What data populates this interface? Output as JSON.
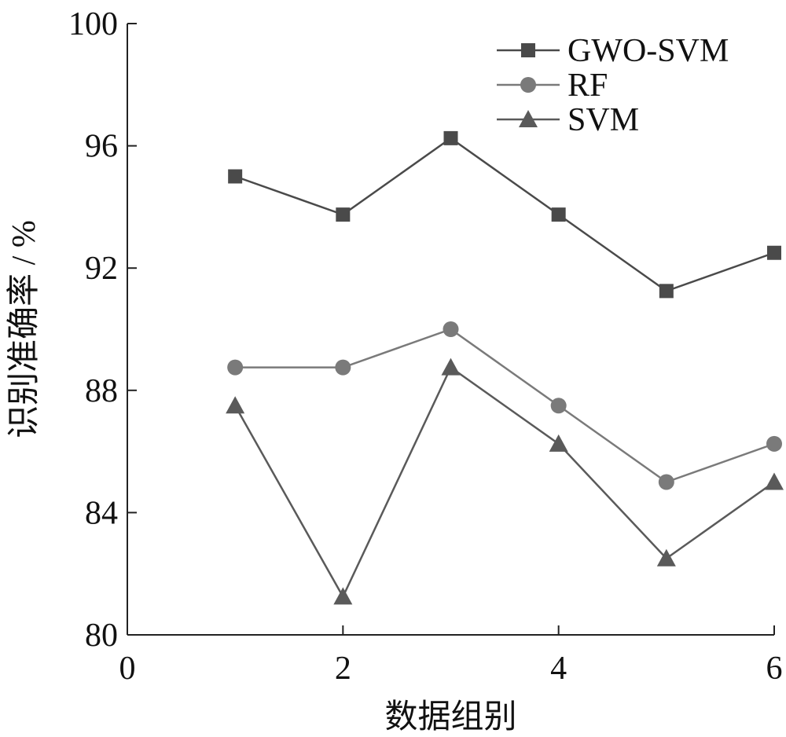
{
  "chart_data": {
    "type": "line",
    "xlabel": "数据组别",
    "ylabel": "识别准确率 / %",
    "xlim": [
      0,
      6
    ],
    "ylim": [
      80,
      100
    ],
    "x_ticks": [
      "0",
      "2",
      "4",
      "6"
    ],
    "y_ticks": [
      "80",
      "84",
      "88",
      "92",
      "96",
      "100"
    ],
    "grid": false,
    "legend_position": "top-right",
    "x": [
      1,
      2,
      3,
      4,
      5,
      6
    ],
    "series": [
      {
        "name": "GWO-SVM",
        "marker": "square",
        "color": "#4a4a4a",
        "values": [
          95.0,
          93.75,
          96.25,
          93.75,
          91.25,
          92.5
        ]
      },
      {
        "name": "RF",
        "marker": "circle",
        "color": "#7a7a7a",
        "values": [
          88.75,
          88.75,
          90.0,
          87.5,
          85.0,
          86.25
        ]
      },
      {
        "name": "SVM",
        "marker": "triangle",
        "color": "#5a5a5a",
        "values": [
          87.5,
          81.25,
          88.75,
          86.25,
          82.5,
          85.0
        ]
      }
    ]
  }
}
